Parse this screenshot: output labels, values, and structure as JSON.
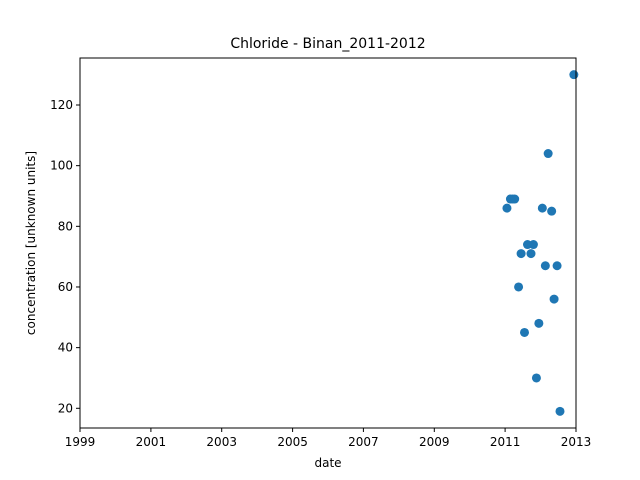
{
  "chart_data": {
    "type": "scatter",
    "title": "Chloride - Binan_2011-2012",
    "xlabel": "date",
    "ylabel": "concentration [unknown units]",
    "xlim": [
      "1999-01-01",
      "2013-01-01"
    ],
    "ylim": [
      13.5,
      135.5
    ],
    "x_ticks": [
      "1999",
      "2001",
      "2003",
      "2005",
      "2007",
      "2009",
      "2011",
      "2013"
    ],
    "y_ticks": [
      20,
      40,
      60,
      80,
      100,
      120
    ],
    "grid": false,
    "marker_color": "#1f77b4",
    "points": [
      {
        "x": "2011-01-20",
        "y": 86
      },
      {
        "x": "2011-02-25",
        "y": 89
      },
      {
        "x": "2011-03-20",
        "y": 89
      },
      {
        "x": "2011-04-10",
        "y": 89
      },
      {
        "x": "2011-05-20",
        "y": 60
      },
      {
        "x": "2011-06-15",
        "y": 71
      },
      {
        "x": "2011-07-20",
        "y": 45
      },
      {
        "x": "2011-08-20",
        "y": 74
      },
      {
        "x": "2011-09-25",
        "y": 71
      },
      {
        "x": "2011-10-20",
        "y": 74
      },
      {
        "x": "2011-11-20",
        "y": 30
      },
      {
        "x": "2011-12-15",
        "y": 48
      },
      {
        "x": "2012-01-20",
        "y": 86
      },
      {
        "x": "2012-02-20",
        "y": 67
      },
      {
        "x": "2012-03-20",
        "y": 104
      },
      {
        "x": "2012-04-25",
        "y": 85
      },
      {
        "x": "2012-05-20",
        "y": 56
      },
      {
        "x": "2012-06-20",
        "y": 67
      },
      {
        "x": "2012-07-20",
        "y": 19
      },
      {
        "x": "2012-12-10",
        "y": 130
      }
    ]
  }
}
